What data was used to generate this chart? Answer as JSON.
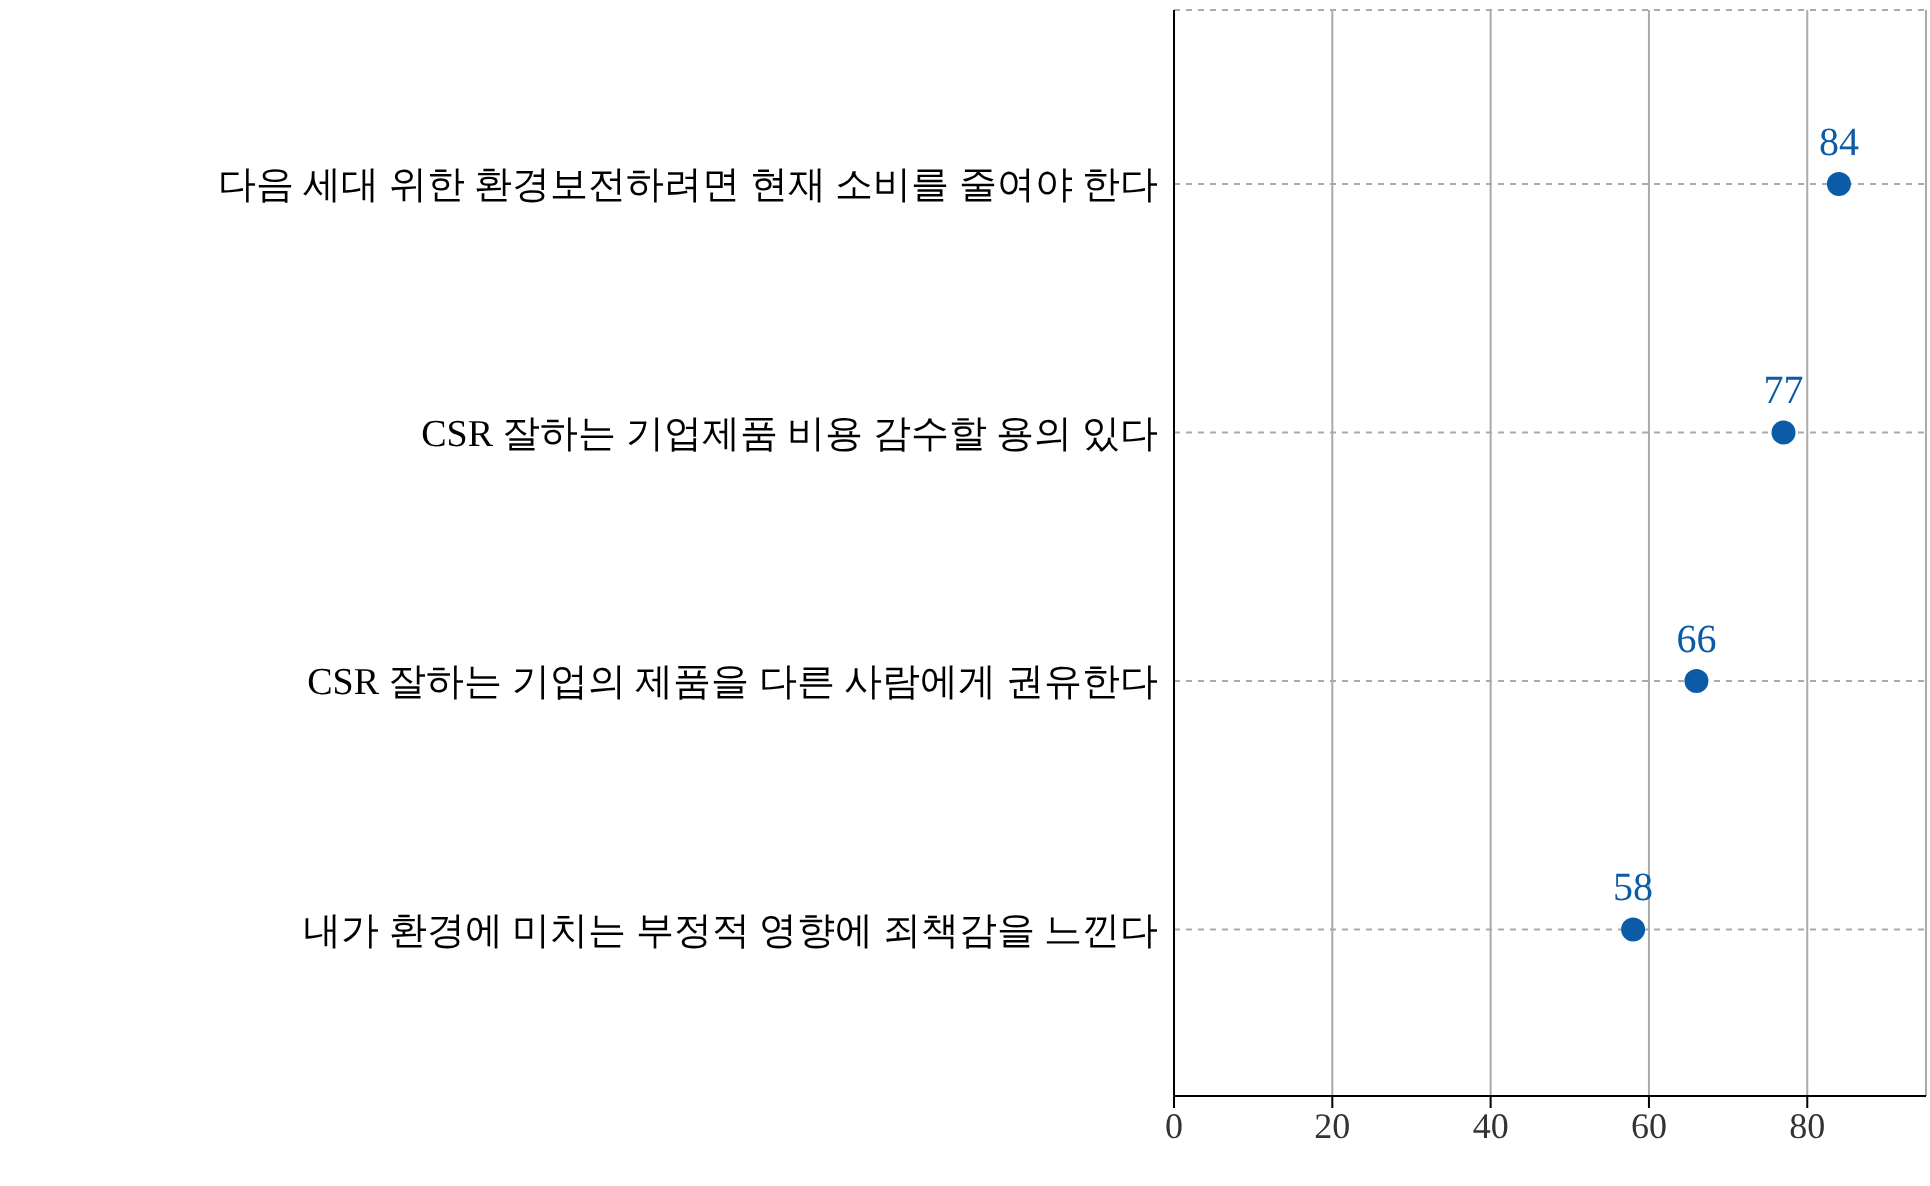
{
  "chart_data": {
    "type": "scatter",
    "orientation": "horizontal",
    "categories": [
      "다음 세대 위한 환경보전하려면 현재 소비를 줄여야 한다",
      "CSR 잘하는 기업제품 비용 감수할 용의 있다",
      "CSR 잘하는 기업의 제품을 다른 사람에게 권유한다",
      "내가 환경에 미치는 부정적 영향에 죄책감을 느낀다"
    ],
    "values": [
      84,
      77,
      66,
      58
    ],
    "color": "#0b5ba6",
    "xlim": [
      0,
      95
    ],
    "xticks": [
      0,
      20,
      40,
      60,
      80
    ],
    "grid": true,
    "data_labels": true,
    "marker": "circle"
  }
}
